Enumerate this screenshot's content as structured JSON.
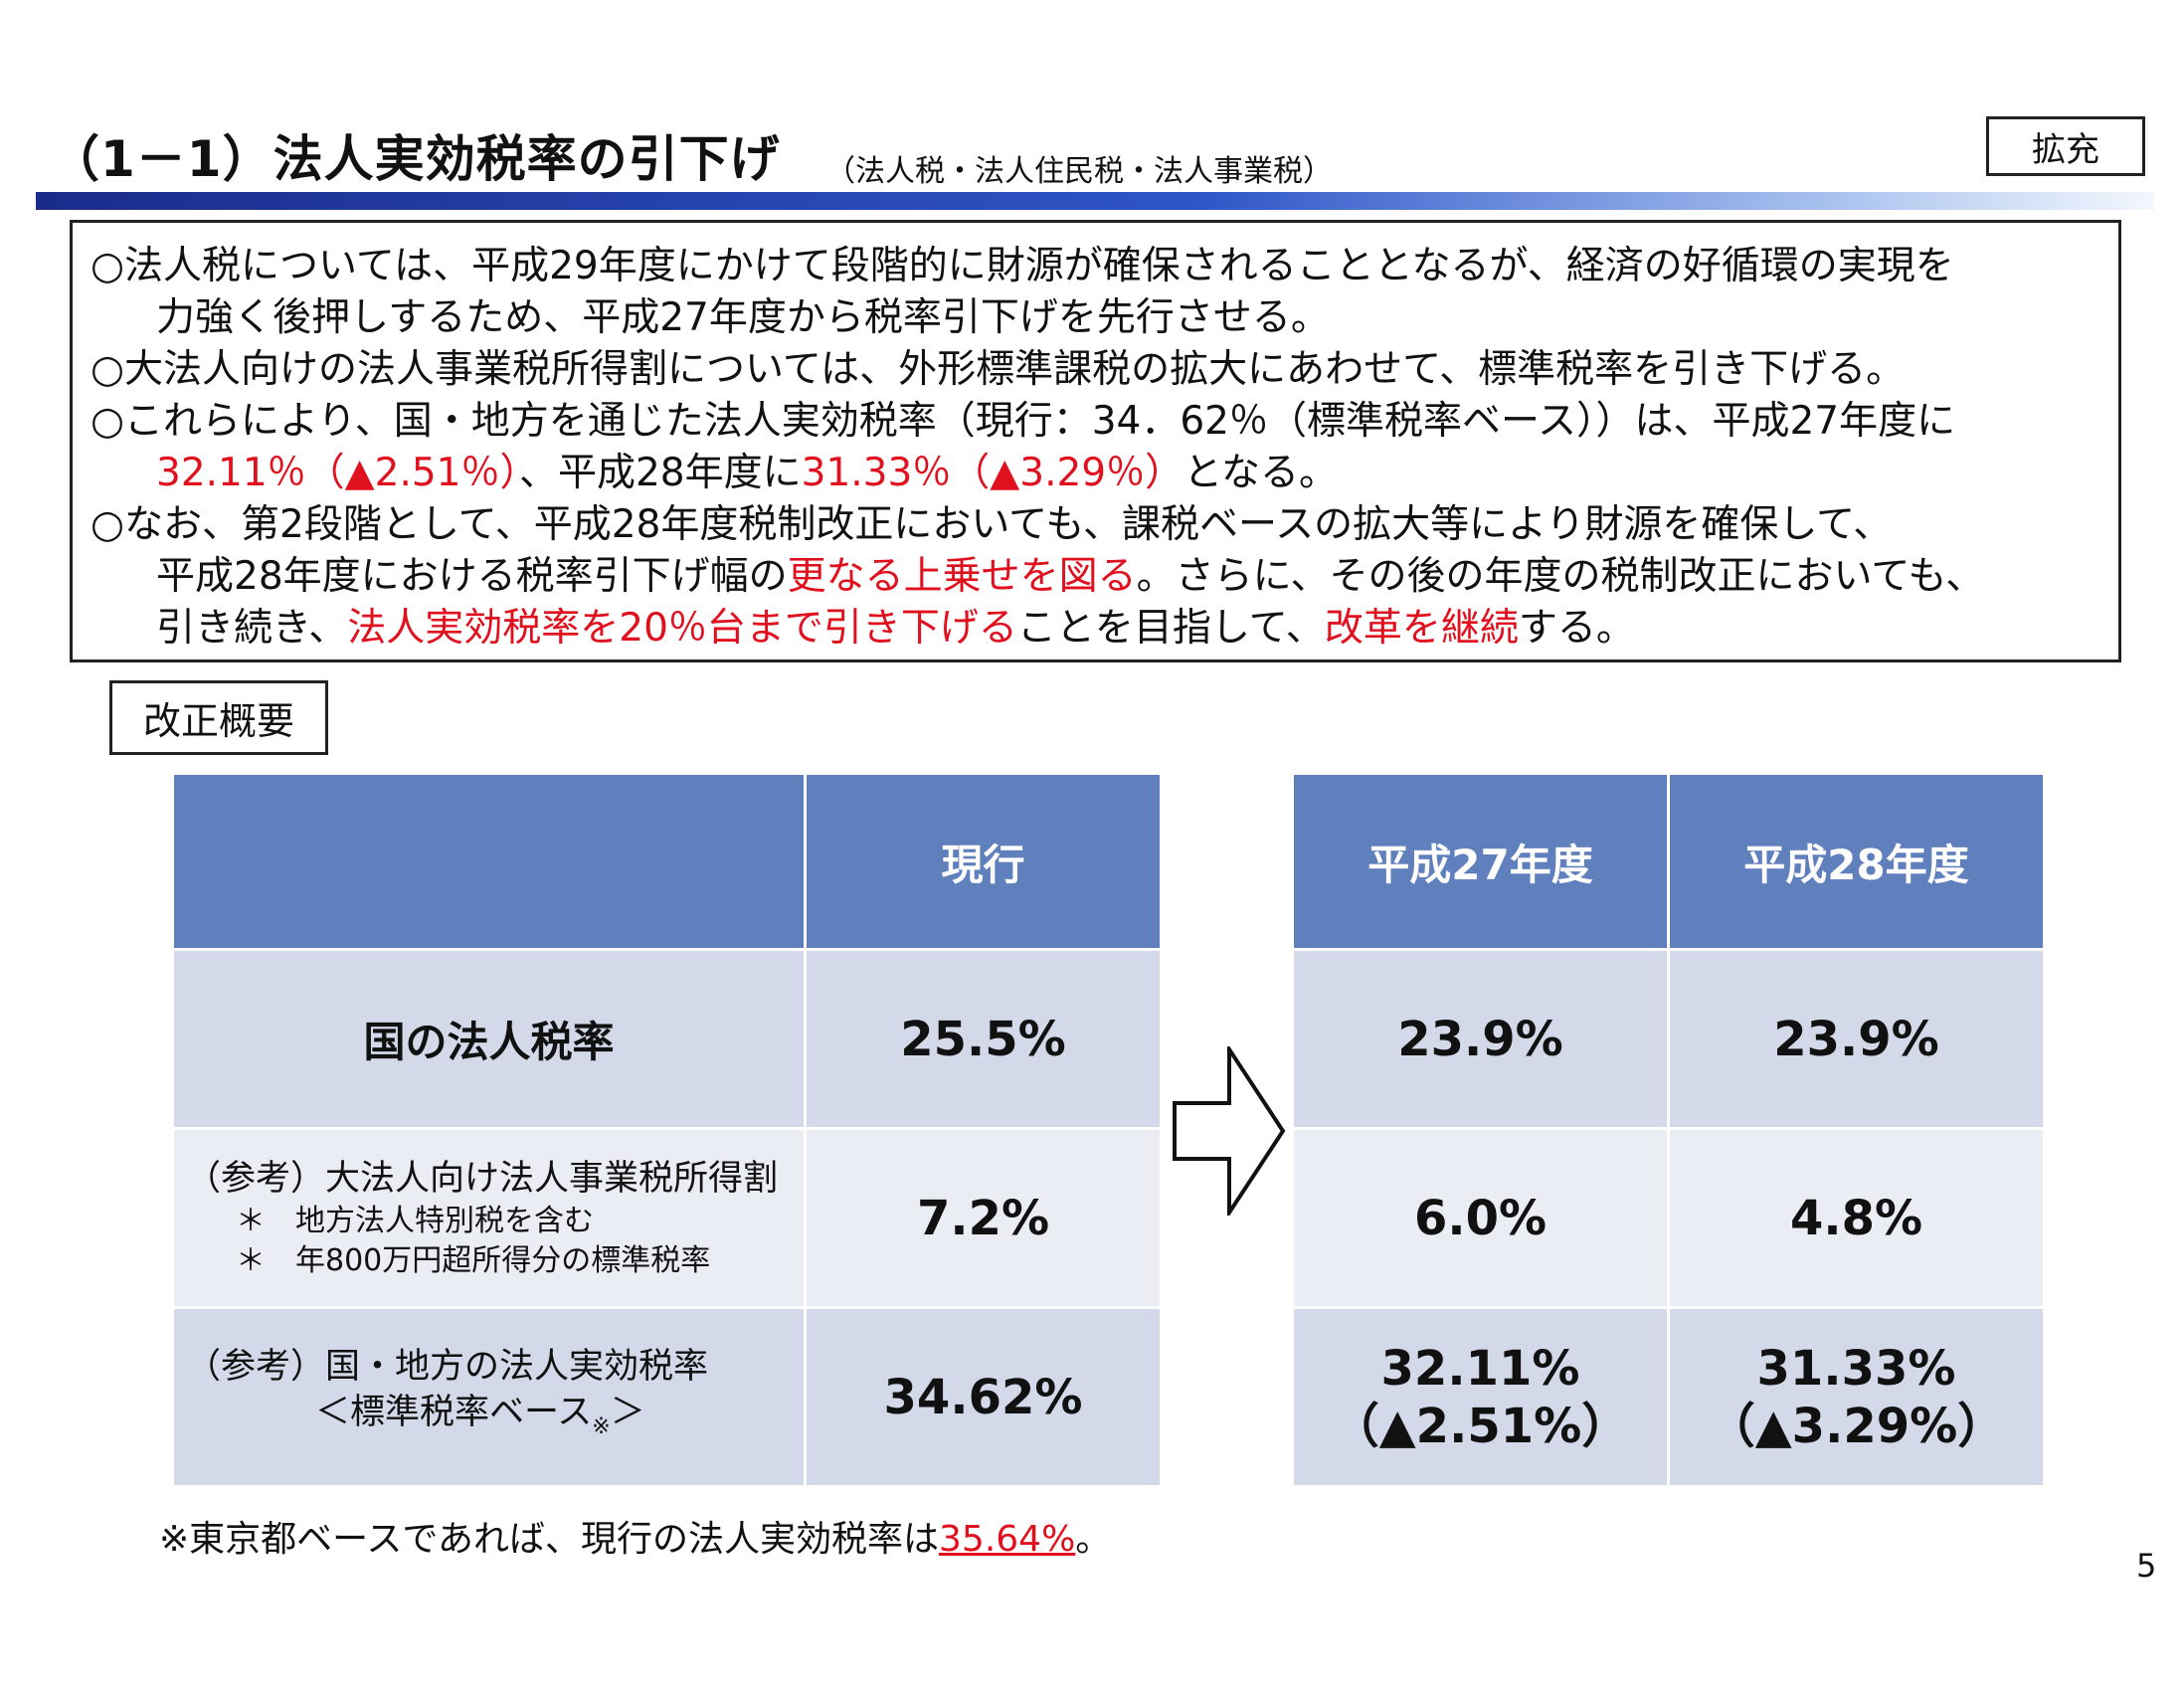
{
  "header": {
    "title": "（1－1）法人実効税率の引下げ",
    "subtitle": "（法人税・法人住民税・法人事業税）",
    "badge": "拡充"
  },
  "summary": {
    "p1_line1": "○法人税については、平成29年度にかけて段階的に財源が確保されることとなるが、経済の好循環の実現を",
    "p1_line2": "力強く後押しするため、平成27年度から税率引下げを先行させる。",
    "p2_line1": "○大法人向けの法人事業税所得割については、外形標準課税の拡大にあわせて、標準税率を引き下げる。",
    "p3_line1": "○これらにより、国・地方を通じた法人実効税率（現行：34．62％（標準税率ベース））は、平成27年度に",
    "p3_l2_red1": "32.11％（▲2.51％）",
    "p3_l2_mid": "、平成28年度に",
    "p3_l2_red2": "31.33％（▲3.29％）",
    "p3_l2_end": "となる。",
    "p4_line1": "○なお、第2段階として、平成28年度税制改正においても、課税ベースの拡大等により財源を確保して、",
    "p4_l2_pre": "平成28年度における税率引下げ幅の",
    "p4_l2_red": "更なる上乗せを図る",
    "p4_l2_post": "。さらに、その後の年度の税制改正においても、",
    "p4_l3_pre": "引き続き、",
    "p4_l3_red1": "法人実効税率を20％台まで引き下げる",
    "p4_l3_mid": "ことを目指して、",
    "p4_l3_red2": "改革を継続",
    "p4_l3_end": "する。"
  },
  "section_label": "改正概要",
  "table": {
    "headers": {
      "current": "現行",
      "h27": "平成27年度",
      "h28": "平成28年度"
    },
    "rows": [
      {
        "label": "国の法人税率",
        "current": "25.5%",
        "h27": "23.9%",
        "h28": "23.9%"
      },
      {
        "label": "（参考）大法人向け法人事業税所得割",
        "note1": "＊　地方法人特別税を含む",
        "note2": "＊　年800万円超所得分の標準税率",
        "current": "7.2%",
        "h27": "6.0%",
        "h28": "4.8%"
      },
      {
        "label": "（参考）国・地方の法人実効税率",
        "label2": "＜標準税率ベース",
        "label2_mark": "※",
        "label2_end": "＞",
        "current": "34.62%",
        "h27": "32.11%",
        "h27_sub": "（▲2.51%）",
        "h28": "31.33%",
        "h28_sub": "（▲3.29%）"
      }
    ]
  },
  "footnote": {
    "pre": "※東京都ベースであれば、現行の法人実効税率は",
    "value": "35.64%",
    "end": "。"
  },
  "page_number": "5",
  "colors": {
    "header_fill": "#607fbd",
    "row_dark": "#d3d9e8",
    "row_light": "#eaedf4",
    "accent_red": "#e0101e"
  }
}
